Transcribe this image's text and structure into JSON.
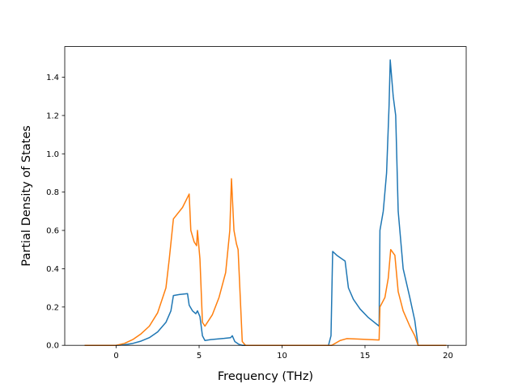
{
  "chart_data": {
    "type": "line",
    "xlabel": "Frequency (THz)",
    "ylabel": "Partial Density of States",
    "xlim": [
      -3.1,
      21.1
    ],
    "ylim": [
      0,
      1.56
    ],
    "x_ticks": [
      0,
      5,
      10,
      15,
      20
    ],
    "x_tick_labels": [
      "0",
      "5",
      "10",
      "15",
      "20"
    ],
    "y_ticks": [
      0.0,
      0.2,
      0.4,
      0.6,
      0.8,
      1.0,
      1.2,
      1.4
    ],
    "y_tick_labels": [
      "0.0",
      "0.2",
      "0.4",
      "0.6",
      "0.8",
      "1.0",
      "1.2",
      "1.4"
    ],
    "grid": false,
    "series": [
      {
        "color": "#1f77b4",
        "points": [
          [
            -1.9,
            0
          ],
          [
            0.0,
            0
          ],
          [
            0.5,
            0.003
          ],
          [
            1.0,
            0.01
          ],
          [
            1.5,
            0.022
          ],
          [
            2.0,
            0.04
          ],
          [
            2.5,
            0.07
          ],
          [
            3.0,
            0.12
          ],
          [
            3.3,
            0.18
          ],
          [
            3.45,
            0.26
          ],
          [
            3.8,
            0.265
          ],
          [
            4.3,
            0.27
          ],
          [
            4.4,
            0.21
          ],
          [
            4.6,
            0.18
          ],
          [
            4.8,
            0.165
          ],
          [
            4.9,
            0.18
          ],
          [
            5.05,
            0.15
          ],
          [
            5.2,
            0.05
          ],
          [
            5.35,
            0.025
          ],
          [
            5.7,
            0.03
          ],
          [
            6.5,
            0.036
          ],
          [
            6.9,
            0.04
          ],
          [
            7.0,
            0.05
          ],
          [
            7.15,
            0.02
          ],
          [
            7.4,
            0.005
          ],
          [
            7.6,
            0
          ],
          [
            12.8,
            0
          ],
          [
            12.95,
            0.05
          ],
          [
            13.05,
            0.49
          ],
          [
            13.3,
            0.47
          ],
          [
            13.8,
            0.44
          ],
          [
            14.0,
            0.3
          ],
          [
            14.3,
            0.24
          ],
          [
            14.7,
            0.19
          ],
          [
            15.2,
            0.145
          ],
          [
            15.85,
            0.1
          ],
          [
            15.9,
            0.6
          ],
          [
            16.1,
            0.7
          ],
          [
            16.3,
            0.9
          ],
          [
            16.45,
            1.25
          ],
          [
            16.52,
            1.49
          ],
          [
            16.7,
            1.3
          ],
          [
            16.85,
            1.2
          ],
          [
            17.0,
            0.7
          ],
          [
            17.3,
            0.4
          ],
          [
            17.7,
            0.25
          ],
          [
            18.0,
            0.13
          ],
          [
            18.2,
            0
          ],
          [
            19.9,
            0
          ]
        ]
      },
      {
        "color": "#ff7f0e",
        "points": [
          [
            -1.9,
            0
          ],
          [
            0.0,
            0
          ],
          [
            0.5,
            0.01
          ],
          [
            1.0,
            0.03
          ],
          [
            1.5,
            0.06
          ],
          [
            2.0,
            0.1
          ],
          [
            2.5,
            0.17
          ],
          [
            3.0,
            0.3
          ],
          [
            3.2,
            0.45
          ],
          [
            3.45,
            0.66
          ],
          [
            4.0,
            0.72
          ],
          [
            4.4,
            0.79
          ],
          [
            4.5,
            0.6
          ],
          [
            4.7,
            0.54
          ],
          [
            4.85,
            0.52
          ],
          [
            4.9,
            0.6
          ],
          [
            5.05,
            0.45
          ],
          [
            5.2,
            0.12
          ],
          [
            5.35,
            0.1
          ],
          [
            5.8,
            0.16
          ],
          [
            6.2,
            0.25
          ],
          [
            6.6,
            0.38
          ],
          [
            6.85,
            0.6
          ],
          [
            6.95,
            0.87
          ],
          [
            7.1,
            0.6
          ],
          [
            7.25,
            0.53
          ],
          [
            7.35,
            0.5
          ],
          [
            7.6,
            0.02
          ],
          [
            7.8,
            0
          ],
          [
            13.0,
            0
          ],
          [
            13.5,
            0.025
          ],
          [
            13.9,
            0.035
          ],
          [
            14.5,
            0.033
          ],
          [
            15.85,
            0.028
          ],
          [
            15.9,
            0.2
          ],
          [
            16.2,
            0.25
          ],
          [
            16.4,
            0.35
          ],
          [
            16.55,
            0.5
          ],
          [
            16.8,
            0.47
          ],
          [
            17.0,
            0.28
          ],
          [
            17.3,
            0.18
          ],
          [
            17.7,
            0.1
          ],
          [
            18.0,
            0.05
          ],
          [
            18.2,
            0
          ],
          [
            19.9,
            0
          ]
        ]
      }
    ]
  }
}
